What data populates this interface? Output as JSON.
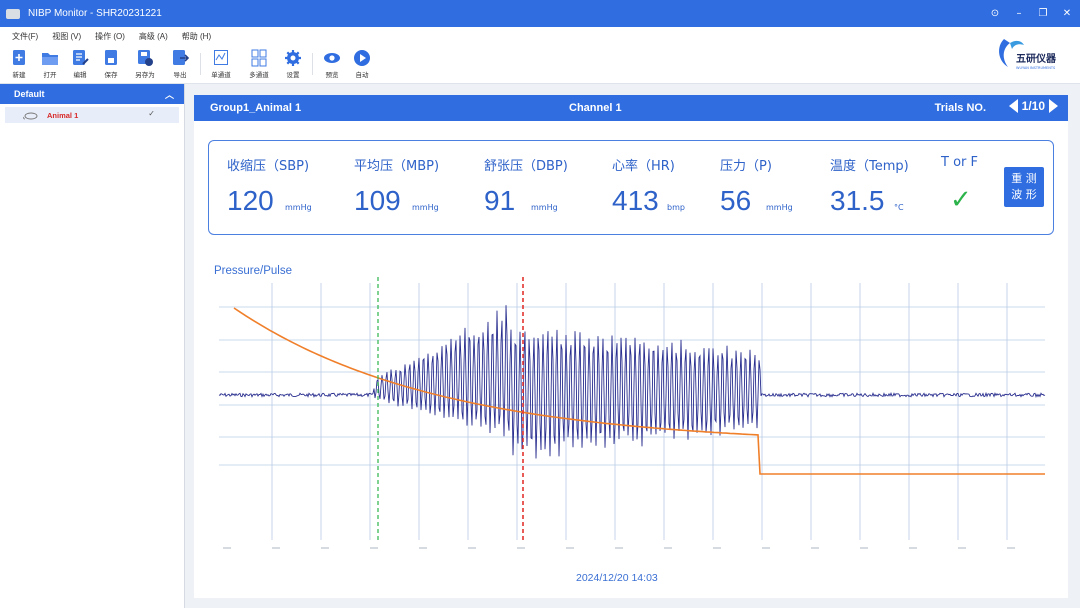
{
  "window": {
    "title": "NIBP Monitor - SHR20231221"
  },
  "menu": [
    "文件(F)",
    "视图 (V)",
    "操作 (O)",
    "高级 (A)",
    "帮助 (H)"
  ],
  "toolbar": {
    "new": "新建",
    "open": "打开",
    "edit": "编辑",
    "save": "保存",
    "save_as": "另存为",
    "export": "导出",
    "single_channel": "单通道",
    "multi_channel": "多通道",
    "settings": "设置",
    "preview": "预览",
    "auto": "自动"
  },
  "sidebar": {
    "header": "Default",
    "items": [
      {
        "label": "Animal 1",
        "checked": true
      }
    ]
  },
  "panel": {
    "group": "Group1_Animal 1",
    "channel": "Channel 1",
    "trials_label": "Trials  NO.",
    "trial": "1/10"
  },
  "metrics": {
    "sbp": {
      "label": "收缩压（SBP)",
      "value": "120",
      "unit": "mmHg"
    },
    "mbp": {
      "label": "平均压（MBP)",
      "value": "109",
      "unit": "mmHg"
    },
    "dbp": {
      "label": "舒张压（DBP)",
      "value": "91",
      "unit": "mmHg"
    },
    "hr": {
      "label": "心率（HR)",
      "value": "413",
      "unit": "bmp"
    },
    "p": {
      "label": "压力（P)",
      "value": "56",
      "unit": "mmHg"
    },
    "temp": {
      "label": "温度（Temp)",
      "value": "31.5",
      "unit": "°C"
    },
    "tf": {
      "label": "T or F",
      "value": "✓"
    },
    "retest_line1": "重 测",
    "retest_line2": "波 形"
  },
  "chart": {
    "title": "Pressure/Pulse",
    "date": "2024/12/20   14:03",
    "colors": {
      "pressure": "#f07f2a",
      "pulse": "#2a2f8f",
      "grid": "#b9cbe6",
      "marker_green": "#2cb34a",
      "marker_red": "#e2332f"
    }
  }
}
